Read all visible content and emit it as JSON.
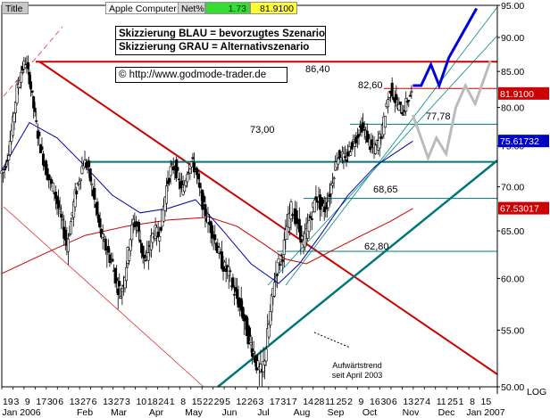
{
  "header": {
    "title_tab": "Title",
    "instrument": "Apple Computer",
    "net_label": "Net%",
    "net_value": "1.73",
    "last_price": "81.9100"
  },
  "notes": {
    "line1": "Skizzierung BLAU = bevorzugtes Szenario",
    "line2": "Skizzierung GRAU = Alternativszenario",
    "copyright": "© http://www.godmode-trader.de"
  },
  "colors": {
    "price_bars": "#000000",
    "ma_blue": "#0000aa",
    "ma_red": "#cc0000",
    "resistance_red": "#cc0000",
    "support_teal": "#007777",
    "scenario_blue": "#0000dd",
    "scenario_gray": "#bbbbbb",
    "channel_lines": "#e03030",
    "trend_thin": "#008888"
  },
  "chart_data": {
    "type": "candlestick",
    "y_scale": "log",
    "ylim": [
      50,
      95
    ],
    "y_ticks": [
      "50.00",
      "55.00",
      "60.00",
      "65.00",
      "70.00",
      "75.00",
      "80.00",
      "85.00",
      "90.00",
      "95.00"
    ],
    "y_axis_suffix": "LOG",
    "x_day_labels": [
      "19",
      "3",
      "9",
      "17",
      "30",
      "6",
      "13",
      "27",
      "6",
      "13",
      "27",
      "3",
      "10",
      "18",
      "24",
      "1",
      "8",
      "15",
      "22",
      "29",
      "5",
      "12",
      "26",
      "3",
      "17",
      "31",
      "7",
      "14",
      "28",
      "11",
      "25",
      "2",
      "9",
      "16",
      "30",
      "6",
      "13",
      "27",
      "4",
      "11",
      "25",
      "1",
      "8",
      "15"
    ],
    "x_month_labels": [
      "Jan 2006",
      "Feb",
      "Mar",
      "Apr",
      "May",
      "Jun",
      "Jul",
      "Aug",
      "Sep",
      "Oct",
      "Nov",
      "Dec",
      "Jan 2007"
    ],
    "price_labels": {
      "last": "81.9100",
      "ma_blue": "75.61732",
      "ma_red": "67.53017"
    },
    "levels": [
      {
        "label": "86,40",
        "value": 86.4,
        "color": "red"
      },
      {
        "label": "82,60",
        "value": 82.6,
        "color": "red"
      },
      {
        "label": "77,78",
        "value": 77.78,
        "color": "teal"
      },
      {
        "label": "73,00",
        "value": 73.0,
        "color": "teal"
      },
      {
        "label": "68,65",
        "value": 68.65,
        "color": "teal"
      },
      {
        "label": "62,80",
        "value": 62.8,
        "color": "teal"
      }
    ],
    "annotation": {
      "line1": "Aufwärtstrend",
      "line2": "seit April 2003"
    },
    "ohlc_close_path": [
      [
        0,
        71.6
      ],
      [
        3,
        72.2
      ],
      [
        6,
        74.5
      ],
      [
        9,
        78.0
      ],
      [
        12,
        82.5
      ],
      [
        15,
        85.0
      ],
      [
        18,
        86.4
      ],
      [
        21,
        84.0
      ],
      [
        24,
        80.0
      ],
      [
        27,
        76.5
      ],
      [
        30,
        74.0
      ],
      [
        33,
        72.0
      ],
      [
        36,
        70.5
      ],
      [
        39,
        69.5
      ],
      [
        42,
        67.5
      ],
      [
        45,
        65.5
      ],
      [
        48,
        63.5
      ],
      [
        51,
        66.0
      ],
      [
        54,
        69.0
      ],
      [
        57,
        71.0
      ],
      [
        60,
        73.0
      ],
      [
        63,
        72.5
      ],
      [
        66,
        70.0
      ],
      [
        69,
        67.5
      ],
      [
        72,
        65.0
      ],
      [
        75,
        63.5
      ],
      [
        78,
        62.5
      ],
      [
        81,
        61.5
      ],
      [
        84,
        59.5
      ],
      [
        87,
        58.5
      ],
      [
        90,
        60.5
      ],
      [
        93,
        63.5
      ],
      [
        96,
        66.0
      ],
      [
        99,
        65.5
      ],
      [
        102,
        63.0
      ],
      [
        105,
        61.5
      ],
      [
        108,
        63.5
      ],
      [
        111,
        65.0
      ],
      [
        114,
        64.5
      ],
      [
        117,
        66.5
      ],
      [
        120,
        70.0
      ],
      [
        123,
        72.0
      ],
      [
        126,
        72.5
      ],
      [
        129,
        70.5
      ],
      [
        132,
        69.5
      ],
      [
        135,
        72.0
      ],
      [
        138,
        73.0
      ],
      [
        141,
        72.0
      ],
      [
        144,
        69.5
      ],
      [
        147,
        67.5
      ],
      [
        150,
        66.0
      ],
      [
        153,
        65.0
      ],
      [
        156,
        63.5
      ],
      [
        159,
        62.0
      ],
      [
        162,
        61.0
      ],
      [
        165,
        60.5
      ],
      [
        168,
        59.0
      ],
      [
        171,
        58.0
      ],
      [
        174,
        57.0
      ],
      [
        177,
        55.5
      ],
      [
        180,
        54.0
      ],
      [
        183,
        53.0
      ],
      [
        186,
        51.5
      ],
      [
        189,
        51.0
      ],
      [
        192,
        53.5
      ],
      [
        195,
        56.5
      ],
      [
        198,
        60.0
      ],
      [
        201,
        61.5
      ],
      [
        204,
        62.5
      ],
      [
        207,
        65.5
      ],
      [
        210,
        67.5
      ],
      [
        213,
        66.5
      ],
      [
        216,
        65.0
      ],
      [
        219,
        63.5
      ],
      [
        222,
        65.5
      ],
      [
        225,
        67.0
      ],
      [
        228,
        69.0
      ],
      [
        231,
        68.0
      ],
      [
        234,
        67.5
      ],
      [
        237,
        68.5
      ],
      [
        240,
        71.0
      ],
      [
        243,
        73.5
      ],
      [
        246,
        74.0
      ],
      [
        249,
        73.0
      ],
      [
        252,
        74.5
      ],
      [
        255,
        75.5
      ],
      [
        258,
        76.5
      ],
      [
        261,
        77.5
      ],
      [
        264,
        76.5
      ],
      [
        267,
        75.0
      ],
      [
        270,
        74.5
      ],
      [
        273,
        75.5
      ],
      [
        276,
        77.0
      ],
      [
        279,
        80.5
      ],
      [
        282,
        82.6
      ],
      [
        285,
        81.0
      ],
      [
        288,
        80.0
      ],
      [
        291,
        79.5
      ],
      [
        294,
        81.0
      ],
      [
        297,
        81.9
      ]
    ],
    "ma_blue_path": [
      [
        0,
        72.0
      ],
      [
        20,
        78.0
      ],
      [
        40,
        76.0
      ],
      [
        60,
        72.5
      ],
      [
        80,
        69.0
      ],
      [
        100,
        67.0
      ],
      [
        120,
        67.5
      ],
      [
        140,
        68.5
      ],
      [
        160,
        65.0
      ],
      [
        180,
        61.5
      ],
      [
        200,
        59.5
      ],
      [
        215,
        61.5
      ],
      [
        230,
        64.5
      ],
      [
        250,
        69.0
      ],
      [
        270,
        72.5
      ],
      [
        297,
        75.6
      ]
    ],
    "ma_red_path": [
      [
        0,
        60.5
      ],
      [
        30,
        62.5
      ],
      [
        60,
        64.5
      ],
      [
        90,
        65.5
      ],
      [
        120,
        66.2
      ],
      [
        150,
        66.5
      ],
      [
        170,
        65.5
      ],
      [
        190,
        63.5
      ],
      [
        205,
        62.0
      ],
      [
        220,
        61.5
      ],
      [
        240,
        63.0
      ],
      [
        260,
        64.5
      ],
      [
        280,
        66.0
      ],
      [
        297,
        67.5
      ]
    ],
    "scenario_blue_path": [
      [
        297,
        83.0
      ],
      [
        303,
        83.0
      ],
      [
        310,
        86.0
      ],
      [
        316,
        83.0
      ],
      [
        323,
        87.0
      ],
      [
        343,
        94.5
      ]
    ],
    "scenario_gray_path": [
      [
        297,
        79.0
      ],
      [
        308,
        73.5
      ],
      [
        314,
        76.0
      ],
      [
        321,
        74.0
      ],
      [
        328,
        80.0
      ],
      [
        335,
        83.0
      ],
      [
        342,
        80.5
      ],
      [
        353,
        86.5
      ]
    ]
  }
}
